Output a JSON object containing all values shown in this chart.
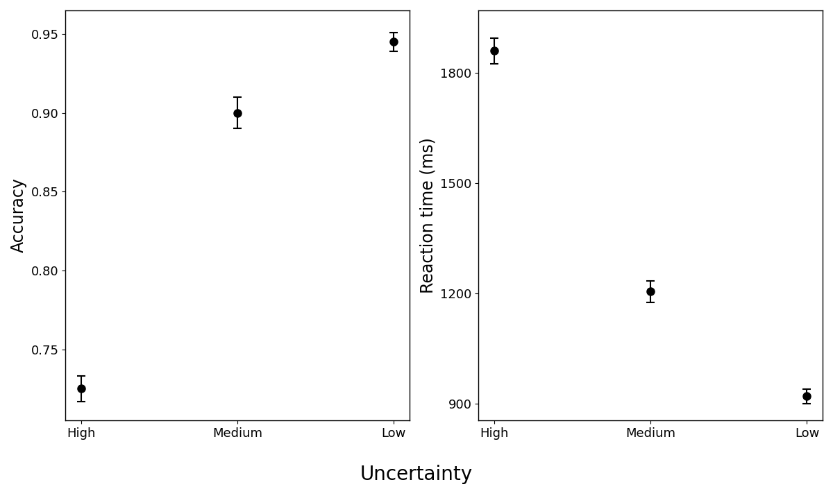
{
  "categories": [
    "High",
    "Medium",
    "Low"
  ],
  "accuracy_values": [
    0.725,
    0.9,
    0.945
  ],
  "accuracy_errors": [
    0.008,
    0.01,
    0.006
  ],
  "rt_values": [
    1860,
    1205,
    920
  ],
  "rt_errors": [
    35,
    30,
    20
  ],
  "accuracy_ylim": [
    0.705,
    0.965
  ],
  "accuracy_yticks": [
    0.75,
    0.8,
    0.85,
    0.9,
    0.95
  ],
  "rt_ylim": [
    855,
    1970
  ],
  "rt_yticks": [
    900,
    1200,
    1500,
    1800
  ],
  "xlabel": "Uncertainty",
  "ylabel_left": "Accuracy",
  "ylabel_right": "Reaction time (ms)",
  "marker_color": "#000000",
  "marker_size": 8,
  "capsize": 4,
  "linewidth": 1.5,
  "background_color": "#ffffff",
  "tick_fontsize": 13,
  "label_fontsize": 17,
  "xlabel_fontsize": 20
}
